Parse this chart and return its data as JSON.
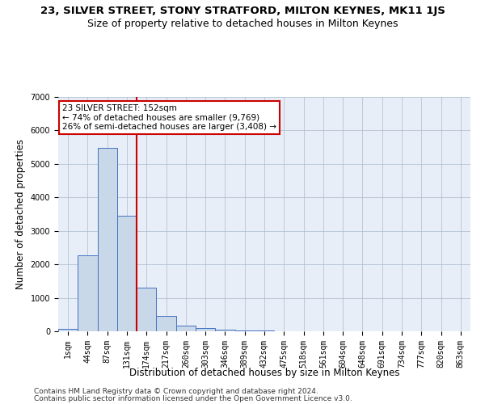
{
  "title": "23, SILVER STREET, STONY STRATFORD, MILTON KEYNES, MK11 1JS",
  "subtitle": "Size of property relative to detached houses in Milton Keynes",
  "xlabel": "Distribution of detached houses by size in Milton Keynes",
  "ylabel": "Number of detached properties",
  "categories": [
    "1sqm",
    "44sqm",
    "87sqm",
    "131sqm",
    "174sqm",
    "217sqm",
    "260sqm",
    "303sqm",
    "346sqm",
    "389sqm",
    "432sqm",
    "475sqm",
    "518sqm",
    "561sqm",
    "604sqm",
    "648sqm",
    "691sqm",
    "734sqm",
    "777sqm",
    "820sqm",
    "863sqm"
  ],
  "bar_heights": [
    75,
    2280,
    5480,
    3440,
    1310,
    460,
    160,
    90,
    55,
    35,
    20,
    10,
    5,
    3,
    2,
    1,
    1,
    0,
    0,
    0,
    0
  ],
  "bar_color": "#c8d8e8",
  "bar_edge_color": "#4472c4",
  "red_line_color": "#cc0000",
  "red_line_x": 3.49,
  "annotation_text": "23 SILVER STREET: 152sqm\n← 74% of detached houses are smaller (9,769)\n26% of semi-detached houses are larger (3,408) →",
  "annotation_box_color": "#ffffff",
  "annotation_box_edge_color": "#cc0000",
  "ylim": [
    0,
    7000
  ],
  "yticks": [
    0,
    1000,
    2000,
    3000,
    4000,
    5000,
    6000,
    7000
  ],
  "footer1": "Contains HM Land Registry data © Crown copyright and database right 2024.",
  "footer2": "Contains public sector information licensed under the Open Government Licence v3.0.",
  "bg_color": "#e8eef8",
  "title_fontsize": 9.5,
  "subtitle_fontsize": 9,
  "axis_label_fontsize": 8.5,
  "tick_fontsize": 7,
  "footer_fontsize": 6.5,
  "annotation_fontsize": 7.5
}
